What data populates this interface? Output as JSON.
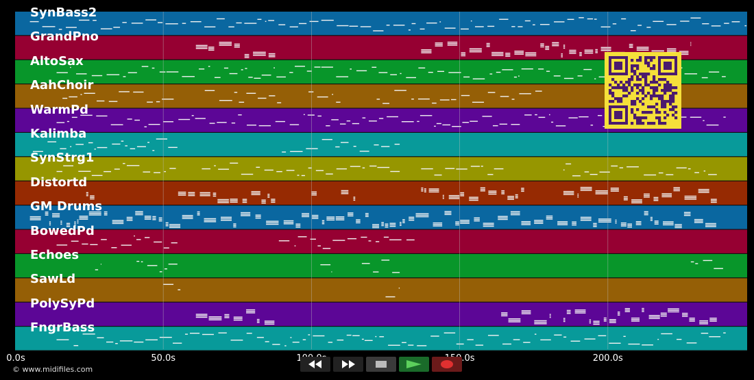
{
  "tracks": [
    {
      "name": "SynBass2",
      "color": "#0a67a0"
    },
    {
      "name": "GrandPno",
      "color": "#960032"
    },
    {
      "name": "AltoSax",
      "color": "#08962a"
    },
    {
      "name": "AahChoir",
      "color": "#955f06"
    },
    {
      "name": "WarmPd",
      "color": "#5c0696"
    },
    {
      "name": "Kalimba",
      "color": "#089a9a"
    },
    {
      "name": "SynStrg1",
      "color": "#969600"
    },
    {
      "name": "Distortd",
      "color": "#962a02"
    },
    {
      "name": "GM Drums",
      "color": "#0a67a0"
    },
    {
      "name": "BowedPd",
      "color": "#960032"
    },
    {
      "name": "Echoes",
      "color": "#08962a"
    },
    {
      "name": "SawLd",
      "color": "#955f06"
    },
    {
      "name": "PolySyPd",
      "color": "#5c0696"
    },
    {
      "name": "FngrBass",
      "color": "#089a9a"
    }
  ],
  "time_axis": {
    "ticks": [
      "0.0s",
      "50.0s",
      "100.0s",
      "150.0s",
      "200.0s"
    ],
    "tick_values": [
      0,
      50,
      100,
      150,
      200
    ],
    "max_seconds": 247
  },
  "credit": "© www.midifiles.com",
  "controls": [
    {
      "name": "rewind-icon"
    },
    {
      "name": "fast-forward-icon"
    },
    {
      "name": "stop-icon"
    },
    {
      "name": "play-icon"
    },
    {
      "name": "record-icon"
    }
  ],
  "colors": {
    "note": "#f2f2f2",
    "grid": "#bfbfbf",
    "qr_bg": "#f5e03a",
    "qr_fg": "#4a1a6e"
  }
}
